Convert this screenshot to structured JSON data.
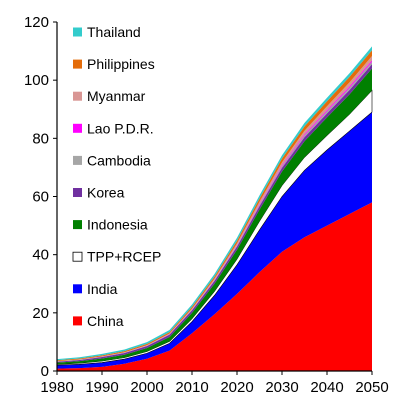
{
  "chart_data": {
    "type": "area",
    "stacked": true,
    "title": "",
    "xlabel": "",
    "ylabel": "",
    "x": [
      1980,
      1985,
      1990,
      1995,
      2000,
      2005,
      2010,
      2015,
      2020,
      2025,
      2030,
      2035,
      2040,
      2045,
      2050
    ],
    "xlim": [
      1980,
      2050
    ],
    "ylim": [
      0,
      120
    ],
    "xticks": [
      "1980",
      "1990",
      "2000",
      "2010",
      "2020",
      "2030",
      "2040",
      "2050"
    ],
    "yticks": [
      "0",
      "20",
      "40",
      "60",
      "80",
      "100",
      "120"
    ],
    "grid": false,
    "legend_position": "top-left",
    "series": [
      {
        "name": "China",
        "color": "#FF0000",
        "values": [
          0.8,
          1.0,
          1.4,
          2.5,
          4.2,
          7.0,
          13.0,
          19.5,
          26.5,
          34.0,
          41.0,
          46.0,
          50.0,
          54.0,
          58.0
        ]
      },
      {
        "name": "India",
        "color": "#0000FF",
        "values": [
          1.2,
          1.3,
          1.5,
          1.6,
          1.9,
          2.5,
          4.0,
          6.5,
          10.0,
          14.5,
          19.0,
          23.0,
          26.0,
          28.5,
          31.0
        ]
      },
      {
        "name": "TPP+RCEP",
        "color": "#FFFFFF",
        "values": [
          0.3,
          0.4,
          0.5,
          0.5,
          0.6,
          0.7,
          1.0,
          1.4,
          2.0,
          3.0,
          3.8,
          4.5,
          5.0,
          5.8,
          7.5
        ]
      },
      {
        "name": "Indonesia",
        "color": "#008000",
        "values": [
          0.6,
          0.7,
          0.9,
          1.0,
          1.2,
          1.5,
          2.0,
          2.6,
          3.2,
          4.0,
          4.8,
          5.5,
          6.2,
          6.8,
          7.5
        ]
      },
      {
        "name": "Korea",
        "color": "#7030A0",
        "values": [
          0.3,
          0.4,
          0.5,
          0.6,
          0.7,
          0.8,
          0.9,
          1.0,
          1.1,
          1.2,
          1.3,
          1.4,
          1.4,
          1.5,
          1.5
        ]
      },
      {
        "name": "Cambodia",
        "color": "#A6A6A6",
        "values": [
          0.05,
          0.05,
          0.06,
          0.07,
          0.08,
          0.1,
          0.15,
          0.2,
          0.3,
          0.4,
          0.5,
          0.6,
          0.7,
          0.75,
          0.8
        ]
      },
      {
        "name": "Lao P.D.R.",
        "color": "#FF00FF",
        "values": [
          0.03,
          0.03,
          0.04,
          0.05,
          0.06,
          0.08,
          0.1,
          0.15,
          0.2,
          0.3,
          0.35,
          0.4,
          0.45,
          0.5,
          0.5
        ]
      },
      {
        "name": "Myanmar",
        "color": "#D99694",
        "values": [
          0.1,
          0.1,
          0.12,
          0.13,
          0.15,
          0.2,
          0.3,
          0.4,
          0.6,
          0.8,
          1.0,
          1.2,
          1.3,
          1.4,
          1.5
        ]
      },
      {
        "name": "Philippines",
        "color": "#E46C0A",
        "values": [
          0.3,
          0.3,
          0.35,
          0.4,
          0.45,
          0.5,
          0.6,
          0.7,
          0.9,
          1.1,
          1.3,
          1.5,
          1.7,
          1.9,
          2.0
        ]
      },
      {
        "name": "Thailand",
        "color": "#33CCCC",
        "values": [
          0.4,
          0.45,
          0.5,
          0.55,
          0.6,
          0.7,
          0.8,
          0.9,
          1.0,
          1.1,
          1.15,
          1.2,
          1.2,
          1.25,
          1.3
        ]
      }
    ]
  }
}
